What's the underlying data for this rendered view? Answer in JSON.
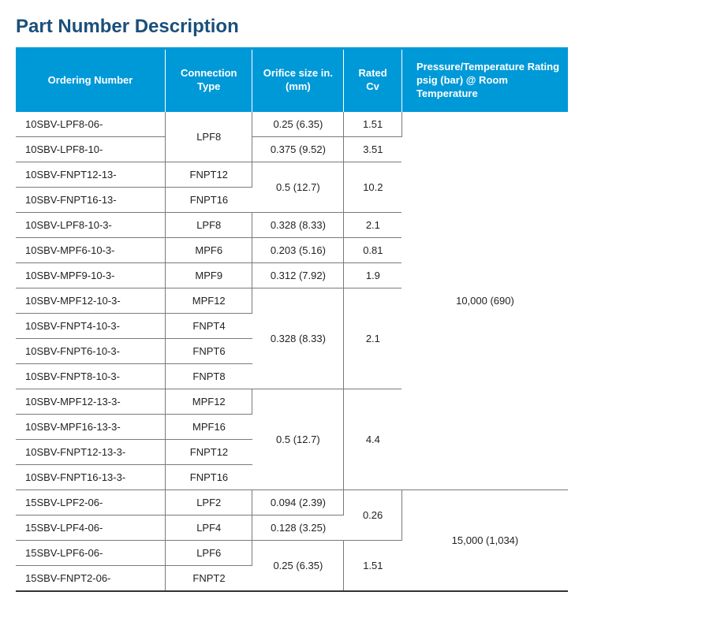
{
  "title": "Part Number Description",
  "columns": {
    "ordering": "Ordering Number",
    "connection": "Connection Type",
    "orifice": "Orifice size in. (mm)",
    "cv": "Rated Cv",
    "pt": "Pressure/Temperature Rating psig (bar) @ Room Temperature"
  },
  "rows": {
    "r0": {
      "order": "10SBV-LPF8-06-"
    },
    "r1": {
      "order": "10SBV-LPF8-10-"
    },
    "r2": {
      "order": "10SBV-FNPT12-13-",
      "conn": "FNPT12"
    },
    "r3": {
      "order": "10SBV-FNPT16-13-",
      "conn": "FNPT16"
    },
    "r4": {
      "order": "10SBV-LPF8-10-3-",
      "conn": "LPF8",
      "orif": "0.328 (8.33)",
      "cv": "2.1"
    },
    "r5": {
      "order": "10SBV-MPF6-10-3-",
      "conn": "MPF6",
      "orif": "0.203 (5.16)",
      "cv": "0.81"
    },
    "r6": {
      "order": "10SBV-MPF9-10-3-",
      "conn": "MPF9",
      "orif": "0.312 (7.92)",
      "cv": "1.9"
    },
    "r7": {
      "order": "10SBV-MPF12-10-3-",
      "conn": "MPF12"
    },
    "r8": {
      "order": "10SBV-FNPT4-10-3-",
      "conn": "FNPT4"
    },
    "r9": {
      "order": "10SBV-FNPT6-10-3-",
      "conn": "FNPT6"
    },
    "r10": {
      "order": "10SBV-FNPT8-10-3-",
      "conn": "FNPT8"
    },
    "r11": {
      "order": "10SBV-MPF12-13-3-",
      "conn": "MPF12"
    },
    "r12": {
      "order": "10SBV-MPF16-13-3-",
      "conn": "MPF16"
    },
    "r13": {
      "order": "10SBV-FNPT12-13-3-",
      "conn": "FNPT12"
    },
    "r14": {
      "order": "10SBV-FNPT16-13-3-",
      "conn": "FNPT16"
    },
    "r15": {
      "order": "15SBV-LPF2-06-",
      "conn": "LPF2",
      "orif": "0.094 (2.39)"
    },
    "r16": {
      "order": "15SBV-LPF4-06-",
      "conn": "LPF4",
      "orif": "0.128 (3.25)"
    },
    "r17": {
      "order": "15SBV-LPF6-06-",
      "conn": "LPF6"
    },
    "r18": {
      "order": "15SBV-FNPT2-06-",
      "conn": "FNPT2"
    }
  },
  "merged": {
    "conn_lpf8": "LPF8",
    "orif_025": "0.25 (6.35)",
    "orif_0375": "0.375 (9.52)",
    "cv_151": "1.51",
    "cv_351": "3.51",
    "orif_05": "0.5 (12.7)",
    "cv_102": "10.2",
    "orif_0328b": "0.328 (8.33)",
    "cv_21b": "2.1",
    "orif_05b": "0.5 (12.7)",
    "cv_44": "4.4",
    "pt_10000": "10,000 (690)",
    "cv_026": "0.26",
    "orif_025b": "0.25 (6.35)",
    "cv_151b": "1.51",
    "pt_15000": "15,000 (1,034)"
  },
  "style": {
    "header_bg": "#0099d8",
    "header_text": "#ffffff",
    "title_color": "#1a4f7a",
    "border_color": "#7a7a7a",
    "body_text": "#222222",
    "font_size_body": 13,
    "font_size_title": 24
  }
}
